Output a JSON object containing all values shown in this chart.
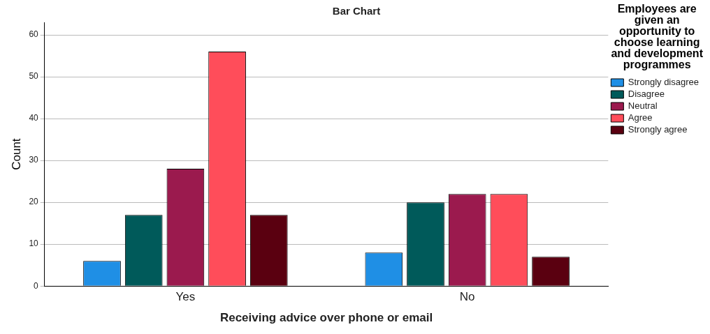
{
  "chart_data": {
    "type": "bar",
    "title": "Bar Chart",
    "xlabel": "Receiving advice over phone or email",
    "ylabel": "Count",
    "legend_title": "Employees are given an opportunity to choose learning and development programmes",
    "categories": [
      "Yes",
      "No"
    ],
    "series": [
      {
        "name": "Strongly disagree",
        "color": "#1f8fe5",
        "values": [
          6,
          8
        ]
      },
      {
        "name": "Disagree",
        "color": "#005a5a",
        "values": [
          17,
          20
        ]
      },
      {
        "name": "Neutral",
        "color": "#9b1a4e",
        "values": [
          28,
          22
        ]
      },
      {
        "name": "Agree",
        "color": "#ff4d5a",
        "values": [
          56,
          22
        ]
      },
      {
        "name": "Strongly agree",
        "color": "#5a0010",
        "values": [
          17,
          7
        ]
      }
    ],
    "ylim": [
      0,
      63
    ],
    "yticks": [
      0,
      10,
      20,
      30,
      40,
      50,
      60
    ],
    "grid": "y",
    "legend": "right"
  }
}
